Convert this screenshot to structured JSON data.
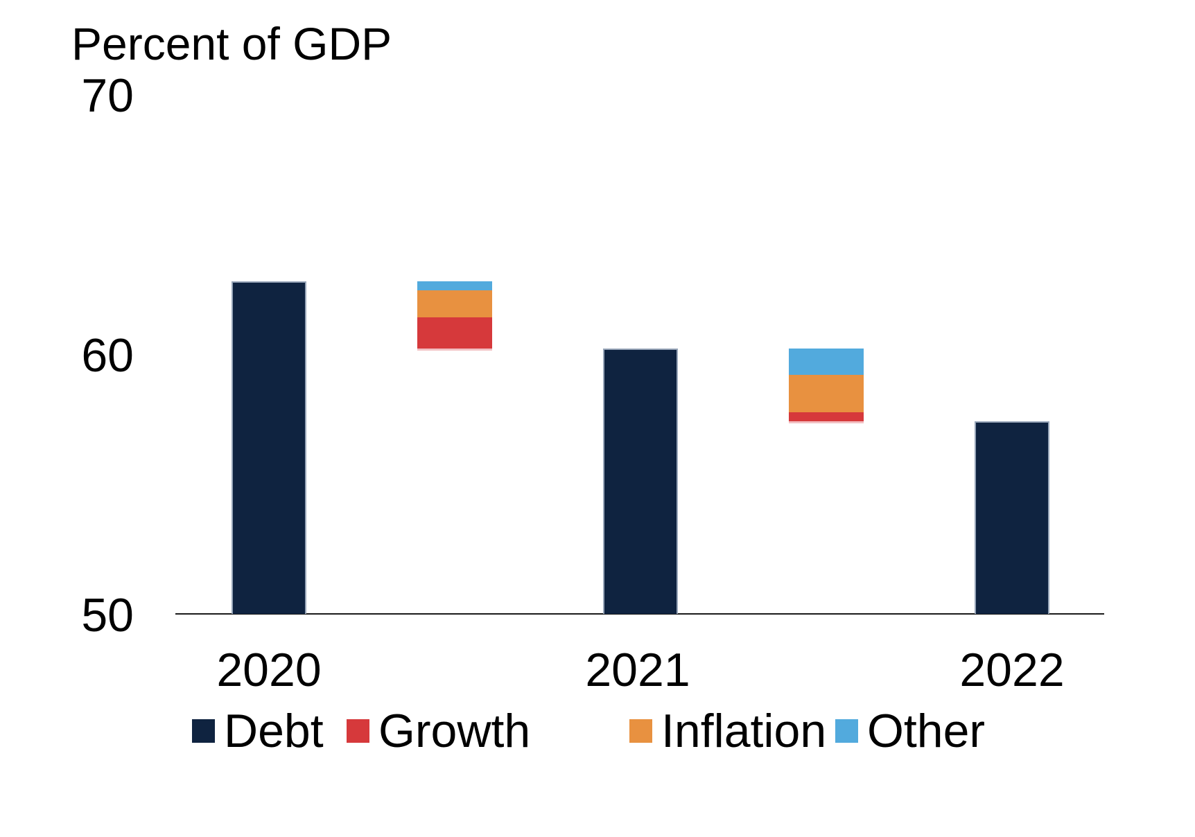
{
  "title": "Percent of GDP",
  "y_axis": {
    "tick_labels": [
      "70",
      "60",
      "50"
    ],
    "tick_values": [
      70,
      60,
      50
    ]
  },
  "x_axis": {
    "labels": [
      "2020",
      "2021",
      "2022"
    ]
  },
  "legend": {
    "items": [
      {
        "label": "Debt",
        "color": "#0F2340"
      },
      {
        "label": "Growth",
        "color": "#D6393B"
      },
      {
        "label": "Inflation",
        "color": "#E89140"
      },
      {
        "label": "Other",
        "color": "#52AADD"
      }
    ]
  },
  "colors": {
    "debt": "#0F2340",
    "growth": "#D6393B",
    "inflation": "#E89140",
    "other": "#52AADD",
    "stack_bottom_edge": "#F2BFC2",
    "axis": "#1A1A1A",
    "background": "#FFFFFF"
  },
  "chart_data": {
    "type": "bar",
    "subtype": "waterfall_decomposition",
    "title": "Percent of GDP",
    "categories": [
      "2020",
      "2021",
      "2022"
    ],
    "series": [
      {
        "name": "Debt",
        "values": [
          62.8,
          60.2,
          57.4
        ]
      }
    ],
    "decompositions": [
      {
        "from_category": "2020",
        "to_category": "2021",
        "from_value": 62.8,
        "to_value": 60.2,
        "segments_bottom_to_top": [
          {
            "name": "Growth",
            "value": 1.2
          },
          {
            "name": "Inflation",
            "value": 1.05
          },
          {
            "name": "Other",
            "value": 0.35
          }
        ]
      },
      {
        "from_category": "2021",
        "to_category": "2022",
        "from_value": 60.2,
        "to_value": 57.4,
        "segments_bottom_to_top": [
          {
            "name": "Growth",
            "value": 0.35
          },
          {
            "name": "Inflation",
            "value": 1.45
          },
          {
            "name": "Other",
            "value": 1.0
          }
        ]
      }
    ],
    "ylim": [
      50,
      70
    ],
    "yticks": [
      50,
      60,
      70
    ],
    "ylabel": "Percent of GDP",
    "grid": false,
    "legend_position": "bottom"
  }
}
